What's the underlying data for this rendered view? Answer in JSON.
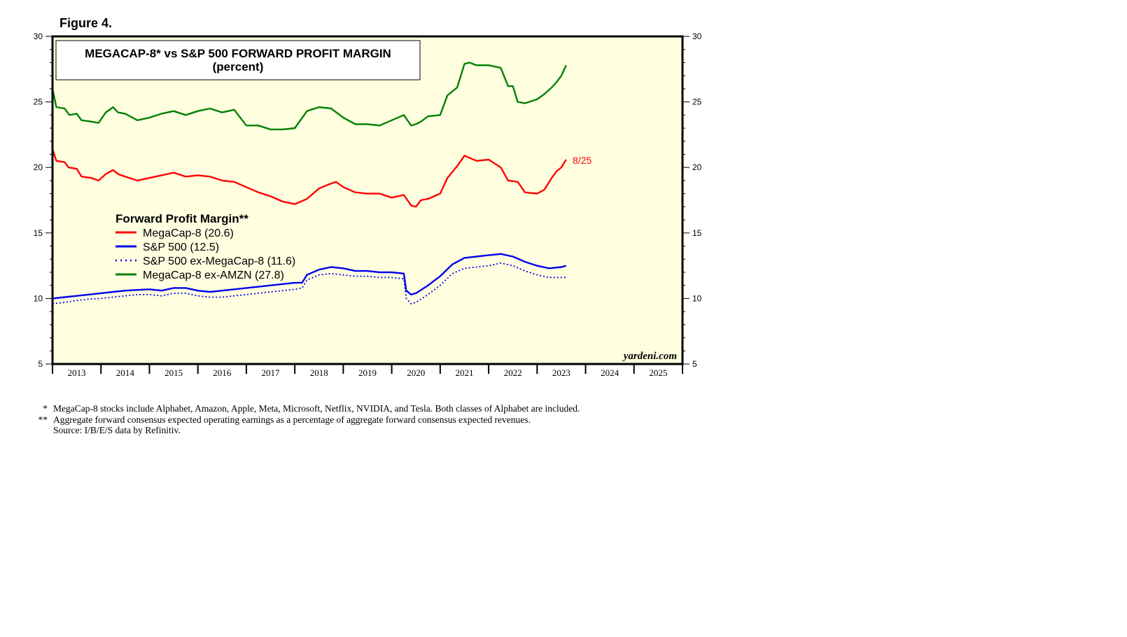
{
  "figure_label": "Figure 4.",
  "watermark": "yardeni.com",
  "chart_data": {
    "type": "line",
    "title": "MEGACAP-8* vs S&P 500 FORWARD PROFIT MARGIN",
    "subtitle": "(percent)",
    "xlabel": "",
    "ylabel": "percent",
    "xlim": [
      2012.5,
      2025.5
    ],
    "ylim": [
      5,
      30
    ],
    "y_ticks": [
      5,
      10,
      15,
      20,
      25,
      30
    ],
    "x_tick_labels": [
      "2013",
      "2014",
      "2015",
      "2016",
      "2017",
      "2018",
      "2019",
      "2020",
      "2021",
      "2022",
      "2023",
      "2024",
      "2025"
    ],
    "legend_title": "Forward Profit Margin**",
    "legend_position": "middle-left",
    "grid": false,
    "annotation": "8/25",
    "series": [
      {
        "name": "MegaCap-8 (20.6)",
        "color": "#ff0000",
        "style": "solid",
        "points": [
          [
            2012.5,
            21.4
          ],
          [
            2012.58,
            20.5
          ],
          [
            2012.75,
            20.4
          ],
          [
            2012.83,
            20.0
          ],
          [
            2013.0,
            19.9
          ],
          [
            2013.1,
            19.3
          ],
          [
            2013.3,
            19.2
          ],
          [
            2013.45,
            19.0
          ],
          [
            2013.6,
            19.5
          ],
          [
            2013.75,
            19.8
          ],
          [
            2013.85,
            19.5
          ],
          [
            2014.0,
            19.3
          ],
          [
            2014.25,
            19.0
          ],
          [
            2014.5,
            19.2
          ],
          [
            2014.75,
            19.4
          ],
          [
            2015.0,
            19.6
          ],
          [
            2015.25,
            19.3
          ],
          [
            2015.5,
            19.4
          ],
          [
            2015.75,
            19.3
          ],
          [
            2016.0,
            19.0
          ],
          [
            2016.25,
            18.9
          ],
          [
            2016.5,
            18.5
          ],
          [
            2016.75,
            18.1
          ],
          [
            2017.0,
            17.8
          ],
          [
            2017.25,
            17.4
          ],
          [
            2017.5,
            17.2
          ],
          [
            2017.75,
            17.6
          ],
          [
            2018.0,
            18.4
          ],
          [
            2018.2,
            18.7
          ],
          [
            2018.35,
            18.9
          ],
          [
            2018.5,
            18.5
          ],
          [
            2018.75,
            18.1
          ],
          [
            2019.0,
            18.0
          ],
          [
            2019.25,
            18.0
          ],
          [
            2019.5,
            17.7
          ],
          [
            2019.75,
            17.9
          ],
          [
            2019.9,
            17.1
          ],
          [
            2020.0,
            17.0
          ],
          [
            2020.1,
            17.5
          ],
          [
            2020.25,
            17.6
          ],
          [
            2020.5,
            18.0
          ],
          [
            2020.65,
            19.2
          ],
          [
            2020.85,
            20.1
          ],
          [
            2021.0,
            20.9
          ],
          [
            2021.25,
            20.5
          ],
          [
            2021.5,
            20.6
          ],
          [
            2021.75,
            20.0
          ],
          [
            2021.9,
            19.0
          ],
          [
            2022.1,
            18.9
          ],
          [
            2022.25,
            18.1
          ],
          [
            2022.5,
            18.0
          ],
          [
            2022.65,
            18.3
          ],
          [
            2022.8,
            19.2
          ],
          [
            2022.9,
            19.7
          ],
          [
            2023.0,
            20.0
          ],
          [
            2023.1,
            20.6
          ]
        ]
      },
      {
        "name": "S&P 500 (12.5)",
        "color": "#0000ee",
        "style": "solid",
        "points": [
          [
            2012.5,
            10.0
          ],
          [
            2012.75,
            10.1
          ],
          [
            2013.0,
            10.2
          ],
          [
            2013.25,
            10.3
          ],
          [
            2013.5,
            10.4
          ],
          [
            2013.75,
            10.5
          ],
          [
            2014.0,
            10.6
          ],
          [
            2014.25,
            10.65
          ],
          [
            2014.5,
            10.7
          ],
          [
            2014.75,
            10.6
          ],
          [
            2015.0,
            10.8
          ],
          [
            2015.25,
            10.8
          ],
          [
            2015.5,
            10.6
          ],
          [
            2015.75,
            10.5
          ],
          [
            2016.0,
            10.6
          ],
          [
            2016.25,
            10.7
          ],
          [
            2016.5,
            10.8
          ],
          [
            2016.75,
            10.9
          ],
          [
            2017.0,
            11.0
          ],
          [
            2017.25,
            11.1
          ],
          [
            2017.5,
            11.2
          ],
          [
            2017.65,
            11.2
          ],
          [
            2017.75,
            11.8
          ],
          [
            2018.0,
            12.2
          ],
          [
            2018.25,
            12.4
          ],
          [
            2018.5,
            12.3
          ],
          [
            2018.75,
            12.1
          ],
          [
            2019.0,
            12.1
          ],
          [
            2019.25,
            12.0
          ],
          [
            2019.5,
            12.0
          ],
          [
            2019.75,
            11.9
          ],
          [
            2019.8,
            10.6
          ],
          [
            2019.9,
            10.3
          ],
          [
            2020.0,
            10.4
          ],
          [
            2020.25,
            11.0
          ],
          [
            2020.5,
            11.7
          ],
          [
            2020.75,
            12.6
          ],
          [
            2021.0,
            13.1
          ],
          [
            2021.25,
            13.2
          ],
          [
            2021.5,
            13.3
          ],
          [
            2021.75,
            13.4
          ],
          [
            2022.0,
            13.2
          ],
          [
            2022.25,
            12.8
          ],
          [
            2022.5,
            12.5
          ],
          [
            2022.75,
            12.3
          ],
          [
            2023.0,
            12.4
          ],
          [
            2023.1,
            12.5
          ]
        ]
      },
      {
        "name": "S&P 500 ex-MegaCap-8 (11.6)",
        "color": "#0000ee",
        "style": "dotted",
        "points": [
          [
            2012.5,
            9.6
          ],
          [
            2012.75,
            9.7
          ],
          [
            2013.0,
            9.85
          ],
          [
            2013.25,
            9.95
          ],
          [
            2013.5,
            10.0
          ],
          [
            2013.75,
            10.1
          ],
          [
            2014.0,
            10.2
          ],
          [
            2014.25,
            10.3
          ],
          [
            2014.5,
            10.3
          ],
          [
            2014.75,
            10.2
          ],
          [
            2015.0,
            10.4
          ],
          [
            2015.25,
            10.4
          ],
          [
            2015.5,
            10.2
          ],
          [
            2015.75,
            10.1
          ],
          [
            2016.0,
            10.1
          ],
          [
            2016.25,
            10.2
          ],
          [
            2016.5,
            10.3
          ],
          [
            2016.75,
            10.4
          ],
          [
            2017.0,
            10.5
          ],
          [
            2017.25,
            10.6
          ],
          [
            2017.5,
            10.7
          ],
          [
            2017.65,
            10.8
          ],
          [
            2017.75,
            11.4
          ],
          [
            2018.0,
            11.8
          ],
          [
            2018.25,
            11.9
          ],
          [
            2018.5,
            11.8
          ],
          [
            2018.75,
            11.7
          ],
          [
            2019.0,
            11.7
          ],
          [
            2019.25,
            11.6
          ],
          [
            2019.5,
            11.6
          ],
          [
            2019.75,
            11.5
          ],
          [
            2019.8,
            10.0
          ],
          [
            2019.9,
            9.6
          ],
          [
            2020.0,
            9.7
          ],
          [
            2020.25,
            10.3
          ],
          [
            2020.5,
            11.0
          ],
          [
            2020.75,
            11.9
          ],
          [
            2021.0,
            12.3
          ],
          [
            2021.25,
            12.4
          ],
          [
            2021.5,
            12.5
          ],
          [
            2021.75,
            12.7
          ],
          [
            2022.0,
            12.5
          ],
          [
            2022.25,
            12.1
          ],
          [
            2022.5,
            11.8
          ],
          [
            2022.75,
            11.6
          ],
          [
            2023.0,
            11.6
          ],
          [
            2023.1,
            11.6
          ]
        ]
      },
      {
        "name": "MegaCap-8 ex-AMZN (27.8)",
        "color": "#008000",
        "style": "solid",
        "points": [
          [
            2012.5,
            26.0
          ],
          [
            2012.58,
            24.6
          ],
          [
            2012.75,
            24.5
          ],
          [
            2012.85,
            24.0
          ],
          [
            2013.0,
            24.1
          ],
          [
            2013.1,
            23.6
          ],
          [
            2013.3,
            23.5
          ],
          [
            2013.45,
            23.4
          ],
          [
            2013.6,
            24.2
          ],
          [
            2013.75,
            24.6
          ],
          [
            2013.85,
            24.2
          ],
          [
            2014.0,
            24.1
          ],
          [
            2014.25,
            23.6
          ],
          [
            2014.5,
            23.8
          ],
          [
            2014.75,
            24.1
          ],
          [
            2015.0,
            24.3
          ],
          [
            2015.25,
            24.0
          ],
          [
            2015.5,
            24.3
          ],
          [
            2015.75,
            24.5
          ],
          [
            2016.0,
            24.2
          ],
          [
            2016.25,
            24.4
          ],
          [
            2016.5,
            23.2
          ],
          [
            2016.75,
            23.2
          ],
          [
            2017.0,
            22.9
          ],
          [
            2017.25,
            22.9
          ],
          [
            2017.5,
            23.0
          ],
          [
            2017.75,
            24.3
          ],
          [
            2018.0,
            24.6
          ],
          [
            2018.25,
            24.5
          ],
          [
            2018.5,
            23.8
          ],
          [
            2018.75,
            23.3
          ],
          [
            2019.0,
            23.3
          ],
          [
            2019.25,
            23.2
          ],
          [
            2019.5,
            23.6
          ],
          [
            2019.75,
            24.0
          ],
          [
            2019.9,
            23.2
          ],
          [
            2020.0,
            23.3
          ],
          [
            2020.1,
            23.5
          ],
          [
            2020.25,
            23.9
          ],
          [
            2020.5,
            24.0
          ],
          [
            2020.65,
            25.5
          ],
          [
            2020.85,
            26.1
          ],
          [
            2021.0,
            27.9
          ],
          [
            2021.1,
            28.0
          ],
          [
            2021.25,
            27.8
          ],
          [
            2021.5,
            27.8
          ],
          [
            2021.75,
            27.6
          ],
          [
            2021.9,
            26.2
          ],
          [
            2022.0,
            26.2
          ],
          [
            2022.1,
            25.0
          ],
          [
            2022.25,
            24.9
          ],
          [
            2022.5,
            25.2
          ],
          [
            2022.65,
            25.6
          ],
          [
            2022.8,
            26.1
          ],
          [
            2022.9,
            26.5
          ],
          [
            2023.0,
            27.0
          ],
          [
            2023.1,
            27.8
          ]
        ]
      }
    ]
  },
  "footnotes": [
    {
      "mark": "*",
      "text": "MegaCap-8 stocks include Alphabet, Amazon, Apple, Meta, Microsoft, Netflix, NVIDIA, and Tesla. Both classes of Alphabet are included."
    },
    {
      "mark": "**",
      "text": "Aggregate forward consensus expected operating earnings as a percentage of aggregate forward consensus expected revenues."
    },
    {
      "mark": "",
      "text": "Source: I/B/E/S data by Refinitiv."
    }
  ]
}
